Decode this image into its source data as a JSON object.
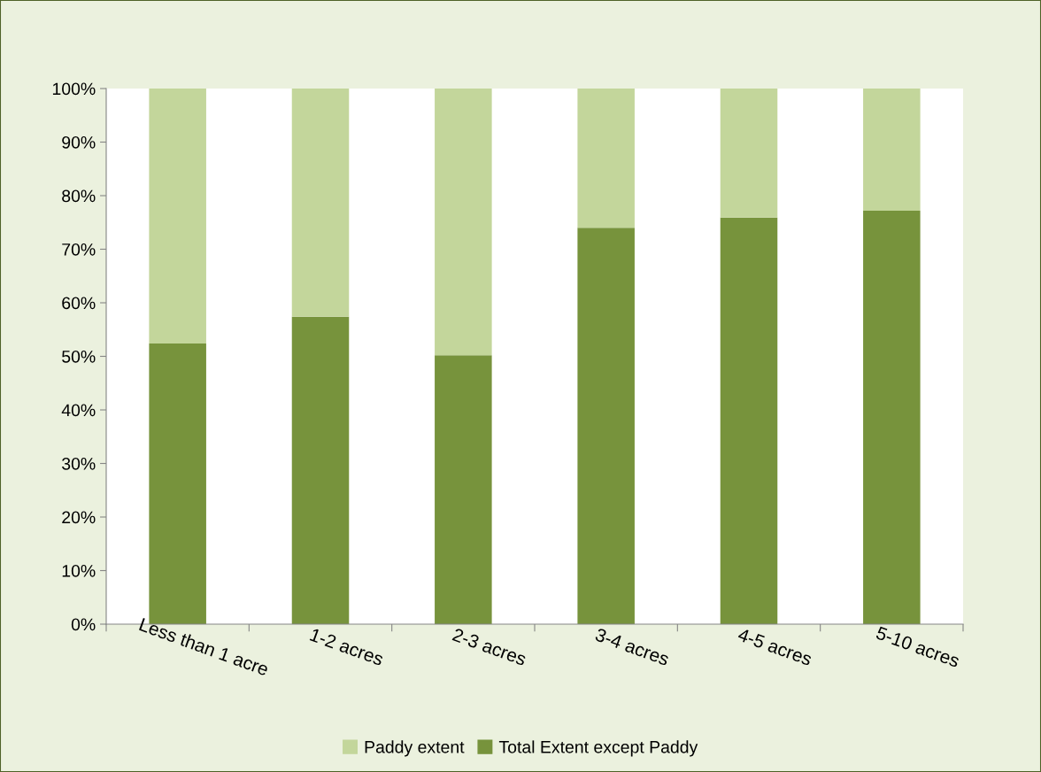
{
  "chart_data": {
    "type": "bar",
    "stacked": true,
    "categories": [
      "Less than 1 acre",
      "1-2 acres",
      "2-3 acres",
      "3-4 acres",
      "4-5 acres",
      "5-10 acres"
    ],
    "series": [
      {
        "name": "Total Extent except Paddy",
        "color": "#77933c",
        "values": [
          52.4,
          57.4,
          50.2,
          74.0,
          75.9,
          77.2
        ]
      },
      {
        "name": "Paddy extent",
        "color": "#c3d69b",
        "values": [
          47.6,
          42.6,
          49.8,
          26.0,
          24.1,
          22.8
        ]
      }
    ],
    "ylim": [
      0,
      100
    ],
    "yticks": [
      {
        "value": 0,
        "label": "0%"
      },
      {
        "value": 10,
        "label": "10%"
      },
      {
        "value": 20,
        "label": "20%"
      },
      {
        "value": 30,
        "label": "30%"
      },
      {
        "value": 40,
        "label": "40%"
      },
      {
        "value": 50,
        "label": "50%"
      },
      {
        "value": 60,
        "label": "60%"
      },
      {
        "value": 70,
        "label": "70%"
      },
      {
        "value": 80,
        "label": "80%"
      },
      {
        "value": 90,
        "label": "90%"
      },
      {
        "value": 100,
        "label": "100%"
      }
    ],
    "grid": false,
    "legend": "bottom"
  }
}
